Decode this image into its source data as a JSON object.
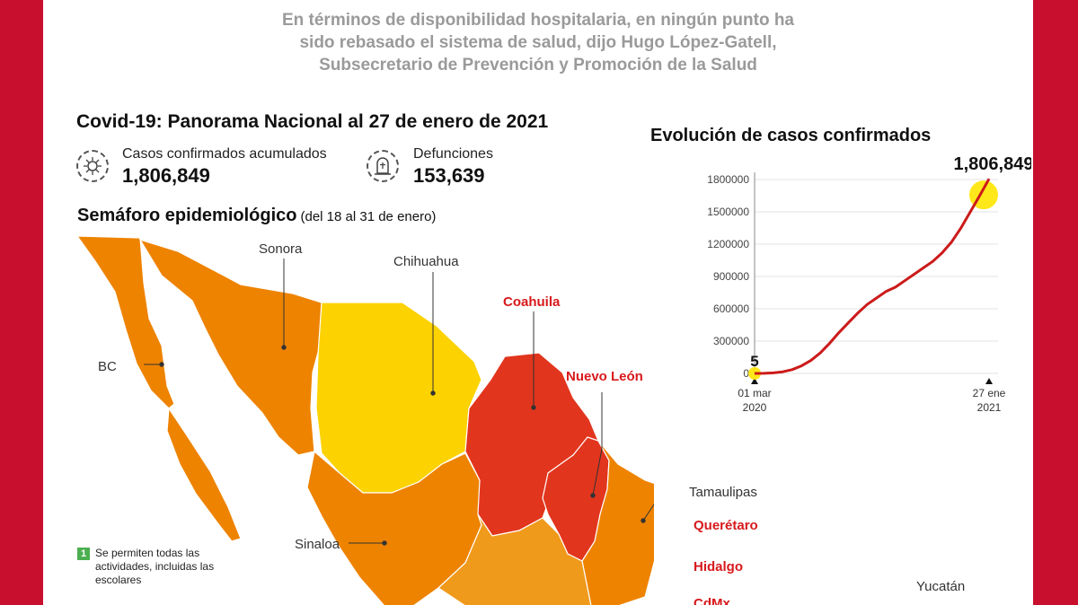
{
  "headline": {
    "lines": [
      "En términos de disponibilidad hospitalaria, en ningún punto ha",
      "sido rebasado el sistema de salud, dijo Hugo López-Gatell,",
      "Subsecretario de Prevención y Promoción de la Salud"
    ]
  },
  "panorama": {
    "title": "Covid-19: Panorama Nacional al 27 de enero de 2021",
    "cases_label": "Casos confirmados acumulados",
    "cases_value": "1,806,849",
    "cases_icon": "virus-icon",
    "deaths_label": "Defunciones",
    "deaths_value": "153,639",
    "deaths_icon": "tombstone-icon"
  },
  "semaforo": {
    "title": "Semáforo epidemiológico",
    "subtitle": "(del 18 al 31 de enero)",
    "colors": {
      "orange": "#ee8300",
      "yellow": "#fcd200",
      "red": "#e2351d"
    },
    "states": [
      {
        "label": "Sonora",
        "level": "orange",
        "highlight": false
      },
      {
        "label": "Chihuahua",
        "level": "yellow",
        "highlight": false
      },
      {
        "label": "Coahuila",
        "level": "red",
        "highlight": true
      },
      {
        "label": "Nuevo León",
        "level": "red",
        "highlight": true
      },
      {
        "label": "BC",
        "level": "orange",
        "highlight": false
      },
      {
        "label": "Tamaulipas",
        "level": "orange",
        "highlight": false
      },
      {
        "label": "Querétaro",
        "level": "red",
        "highlight": true
      },
      {
        "label": "Sinaloa",
        "level": "orange",
        "highlight": false
      },
      {
        "label": "Hidalgo",
        "level": "red",
        "highlight": true
      },
      {
        "label": "CdMx",
        "level": "red",
        "highlight": true
      },
      {
        "label": "Yucatán",
        "level": "orange",
        "highlight": false
      }
    ],
    "legend": {
      "number": "1",
      "color": "#4caf50",
      "text": "Se permiten todas las actividades, incluidas las escolares"
    }
  },
  "chart_data": {
    "type": "line",
    "title": "Evolución de casos confirmados",
    "ylim": [
      0,
      1800000
    ],
    "yticks": [
      "0",
      "300000",
      "600000",
      "900000",
      "1200000",
      "1500000",
      "1800000"
    ],
    "x_start_label": [
      "01 mar",
      "2020"
    ],
    "x_end_label": [
      "27 ene",
      "2021"
    ],
    "start_annotation": "5",
    "end_annotation": "1,806,849",
    "line_color": "#cc1a1a",
    "marker_color": "#ffe600",
    "series": [
      {
        "values": [
          5,
          1000,
          5000,
          15000,
          35000,
          70000,
          120000,
          190000,
          280000,
          380000,
          470000,
          560000,
          640000,
          700000,
          760000,
          800000,
          860000,
          920000,
          980000,
          1040000,
          1120000,
          1220000,
          1350000,
          1500000,
          1650000,
          1806849
        ]
      }
    ]
  }
}
